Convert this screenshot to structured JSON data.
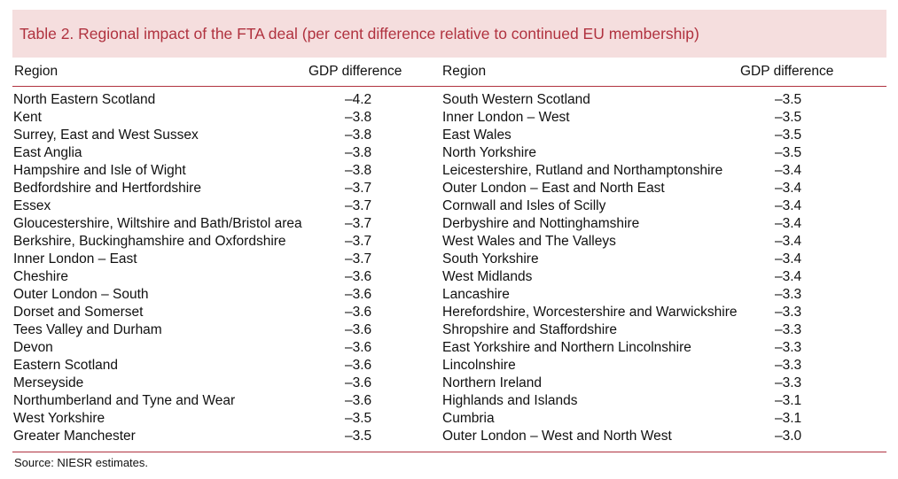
{
  "title": "Table 2. Regional impact of the FTA deal (per cent difference relative to continued EU membership)",
  "headers": {
    "region": "Region",
    "gdp": "GDP difference"
  },
  "left_rows": [
    {
      "region": "North Eastern Scotland",
      "value": "–4.2"
    },
    {
      "region": "Kent",
      "value": "–3.8"
    },
    {
      "region": "Surrey, East and West Sussex",
      "value": "–3.8"
    },
    {
      "region": "East Anglia",
      "value": "–3.8"
    },
    {
      "region": "Hampshire and Isle of Wight",
      "value": "–3.8"
    },
    {
      "region": "Bedfordshire and Hertfordshire",
      "value": "–3.7"
    },
    {
      "region": "Essex",
      "value": "–3.7"
    },
    {
      "region": "Gloucestershire, Wiltshire and Bath/Bristol area",
      "value": "–3.7"
    },
    {
      "region": "Berkshire, Buckinghamshire and Oxfordshire",
      "value": "–3.7"
    },
    {
      "region": "Inner London – East",
      "value": "–3.7"
    },
    {
      "region": "Cheshire",
      "value": "–3.6"
    },
    {
      "region": "Outer London – South",
      "value": "–3.6"
    },
    {
      "region": "Dorset and Somerset",
      "value": "–3.6"
    },
    {
      "region": "Tees Valley and Durham",
      "value": "–3.6"
    },
    {
      "region": "Devon",
      "value": "–3.6"
    },
    {
      "region": "Eastern Scotland",
      "value": "–3.6"
    },
    {
      "region": "Merseyside",
      "value": "–3.6"
    },
    {
      "region": "Northumberland and Tyne and Wear",
      "value": "–3.6"
    },
    {
      "region": "West Yorkshire",
      "value": "–3.5"
    },
    {
      "region": "Greater Manchester",
      "value": "–3.5"
    }
  ],
  "right_rows": [
    {
      "region": "South Western Scotland",
      "value": "–3.5"
    },
    {
      "region": "Inner London – West",
      "value": "–3.5"
    },
    {
      "region": "East Wales",
      "value": "–3.5"
    },
    {
      "region": "North Yorkshire",
      "value": "–3.5"
    },
    {
      "region": "Leicestershire, Rutland and Northamptonshire",
      "value": "–3.4"
    },
    {
      "region": "Outer London – East and North East",
      "value": "–3.4"
    },
    {
      "region": "Cornwall and Isles of Scilly",
      "value": "–3.4"
    },
    {
      "region": "Derbyshire and Nottinghamshire",
      "value": "–3.4"
    },
    {
      "region": "West Wales and The Valleys",
      "value": "–3.4"
    },
    {
      "region": "South Yorkshire",
      "value": "–3.4"
    },
    {
      "region": "West Midlands",
      "value": "–3.4"
    },
    {
      "region": "Lancashire",
      "value": "–3.3"
    },
    {
      "region": "Herefordshire, Worcestershire and Warwickshire",
      "value": "–3.3"
    },
    {
      "region": "Shropshire and Staffordshire",
      "value": "–3.3"
    },
    {
      "region": "East Yorkshire and Northern Lincolnshire",
      "value": "–3.3"
    },
    {
      "region": "Lincolnshire",
      "value": "–3.3"
    },
    {
      "region": "Northern Ireland",
      "value": "–3.3"
    },
    {
      "region": "Highlands and Islands",
      "value": "–3.1"
    },
    {
      "region": "Cumbria",
      "value": "–3.1"
    },
    {
      "region": "Outer London – West and North West",
      "value": "–3.0"
    }
  ],
  "source": "Source: NIESR estimates.",
  "colors": {
    "accent": "#b0323f",
    "title_bg": "#f5dede"
  }
}
